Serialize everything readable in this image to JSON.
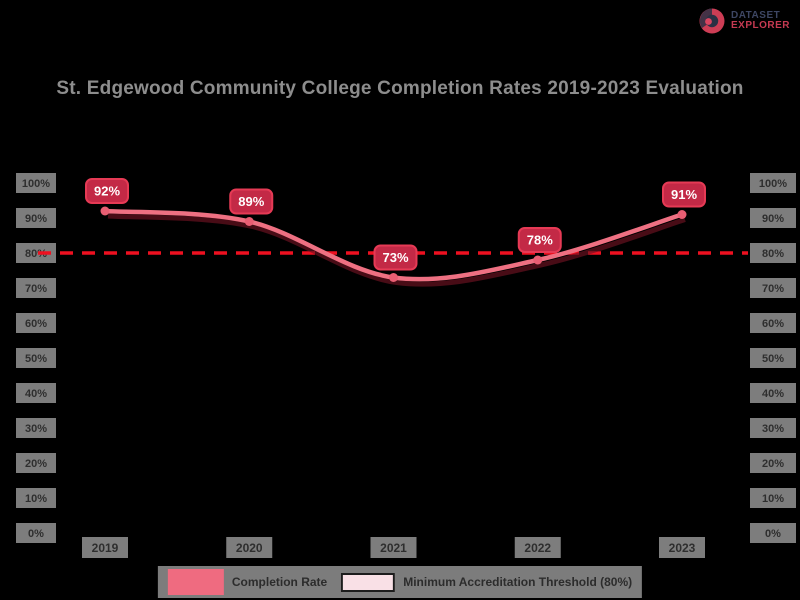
{
  "logo": {
    "line1": "DATASET",
    "line2": "EXPLORER"
  },
  "chart_data": {
    "type": "line",
    "title": "St. Edgewood Community College Completion Rates 2019-2023 Evaluation",
    "x": [
      "2019",
      "2020",
      "2021",
      "2022",
      "2023"
    ],
    "series": [
      {
        "name": "Completion Rate",
        "values": [
          92,
          89,
          73,
          78,
          91
        ]
      }
    ],
    "point_labels": [
      "92%",
      "89%",
      "73%",
      "78%",
      "91%"
    ],
    "benchmark": {
      "value": 80,
      "label": "Minimum Accreditation Threshold (80%)",
      "style": "dashed"
    },
    "ylim": [
      0,
      100
    ],
    "ytick_step": 10,
    "ytick_suffix": "%",
    "dual_axis": true,
    "grid": false,
    "legend_position": "bottom"
  },
  "legend": {
    "items": [
      {
        "label": "Completion Rate",
        "swatch": "solid-pink"
      },
      {
        "label": "Minimum Accreditation Threshold (80%)",
        "swatch": "light-pink-outline"
      }
    ]
  },
  "colors": {
    "background": "#000000",
    "line": "#ee7082",
    "line_shadow": "#6f1322",
    "point": "#e95e73",
    "label_box_fill": "#c32946",
    "label_box_border": "#e63a55",
    "label_text": "#ffffff",
    "benchmark_line": "#ee1020",
    "title_text": "#8d8d8d",
    "tick_chip": "#7d7d7d",
    "tick_text": "#2e2e2e",
    "legend_strip": "#7c7c7c",
    "legend_swatch_line": "#ef6b80",
    "legend_swatch_benchmark": "#f9e0e6",
    "logo_primary": "#3d4663",
    "logo_accent": "#c63a52"
  }
}
